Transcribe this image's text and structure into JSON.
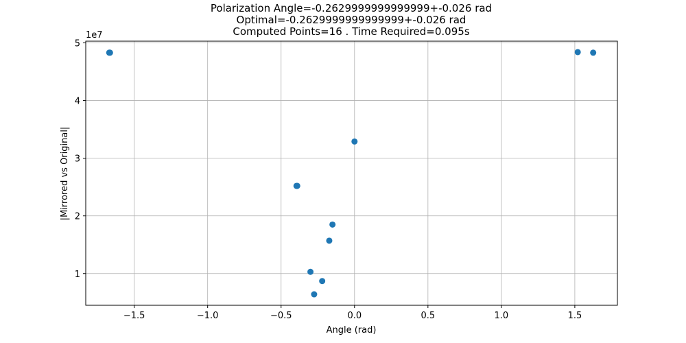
{
  "chart_data": {
    "type": "scatter",
    "title_lines": [
      "Polarization Angle=-0.2629999999999999+-0.026 rad",
      "Optimal=-0.2629999999999999+-0.026 rad",
      "Computed Points=16 . Time Required=0.095s"
    ],
    "xlabel": "Angle (rad)",
    "ylabel": "|Mirrored vs Original|",
    "y_offset_label": "1e7",
    "xlim": [
      -1.83,
      1.79
    ],
    "ylim": [
      4500000,
      50300000
    ],
    "xticks": [
      -1.5,
      -1.0,
      -0.5,
      0.0,
      0.5,
      1.0,
      1.5
    ],
    "xtick_labels": [
      "−1.5",
      "−1.0",
      "−0.5",
      "0.0",
      "0.5",
      "1.0",
      "1.5"
    ],
    "yticks": [
      10000000,
      20000000,
      30000000,
      40000000,
      50000000
    ],
    "ytick_labels": [
      "1",
      "2",
      "3",
      "4",
      "5"
    ],
    "grid": true,
    "marker_color": "#1f77b4",
    "points": [
      {
        "x": -1.67,
        "y": 48300000
      },
      {
        "x": -1.665,
        "y": 48300000
      },
      {
        "x": -0.395,
        "y": 25200000
      },
      {
        "x": -0.39,
        "y": 25200000
      },
      {
        "x": 0.0,
        "y": 32900000
      },
      {
        "x": -0.15,
        "y": 18500000
      },
      {
        "x": -0.172,
        "y": 15700000
      },
      {
        "x": -0.3,
        "y": 10300000
      },
      {
        "x": -0.22,
        "y": 8700000
      },
      {
        "x": -0.275,
        "y": 6400000
      },
      {
        "x": 1.52,
        "y": 48400000
      },
      {
        "x": 1.625,
        "y": 48300000
      }
    ]
  }
}
